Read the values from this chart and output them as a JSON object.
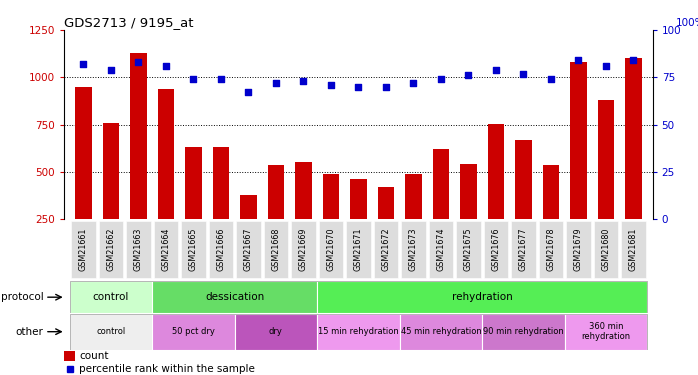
{
  "title": "GDS2713 / 9195_at",
  "samples": [
    "GSM21661",
    "GSM21662",
    "GSM21663",
    "GSM21664",
    "GSM21665",
    "GSM21666",
    "GSM21667",
    "GSM21668",
    "GSM21669",
    "GSM21670",
    "GSM21671",
    "GSM21672",
    "GSM21673",
    "GSM21674",
    "GSM21675",
    "GSM21676",
    "GSM21677",
    "GSM21678",
    "GSM21679",
    "GSM21680",
    "GSM21681"
  ],
  "counts": [
    950,
    760,
    1130,
    940,
    630,
    630,
    380,
    535,
    555,
    490,
    465,
    420,
    490,
    620,
    545,
    755,
    670,
    535,
    1080,
    880,
    1100
  ],
  "percentiles": [
    82,
    79,
    83,
    81,
    74,
    74,
    67,
    72,
    73,
    71,
    70,
    70,
    72,
    74,
    76,
    79,
    77,
    74,
    84,
    81,
    84
  ],
  "ylim_left": [
    250,
    1250
  ],
  "ylim_right": [
    0,
    100
  ],
  "yticks_left": [
    250,
    500,
    750,
    1000,
    1250
  ],
  "yticks_right": [
    0,
    25,
    50,
    75,
    100
  ],
  "bar_color": "#cc0000",
  "dot_color": "#0000cc",
  "protocol_regions": [
    {
      "label": "control",
      "start": 0,
      "end": 3,
      "color": "#ccffcc"
    },
    {
      "label": "dessication",
      "start": 3,
      "end": 9,
      "color": "#66dd66"
    },
    {
      "label": "rehydration",
      "start": 9,
      "end": 21,
      "color": "#55ee55"
    }
  ],
  "other_regions": [
    {
      "label": "control",
      "start": 0,
      "end": 3,
      "color": "#eeeeee"
    },
    {
      "label": "50 pct dry",
      "start": 3,
      "end": 6,
      "color": "#dd88dd"
    },
    {
      "label": "dry",
      "start": 6,
      "end": 9,
      "color": "#bb55bb"
    },
    {
      "label": "15 min rehydration",
      "start": 9,
      "end": 12,
      "color": "#ee99ee"
    },
    {
      "label": "45 min rehydration",
      "start": 12,
      "end": 15,
      "color": "#dd88dd"
    },
    {
      "label": "90 min rehydration",
      "start": 15,
      "end": 18,
      "color": "#cc77cc"
    },
    {
      "label": "360 min\nrehydration",
      "start": 18,
      "end": 21,
      "color": "#ee99ee"
    }
  ],
  "protocol_label": "protocol",
  "other_label": "other",
  "legend_count_label": "count",
  "legend_pct_label": "percentile rank within the sample"
}
